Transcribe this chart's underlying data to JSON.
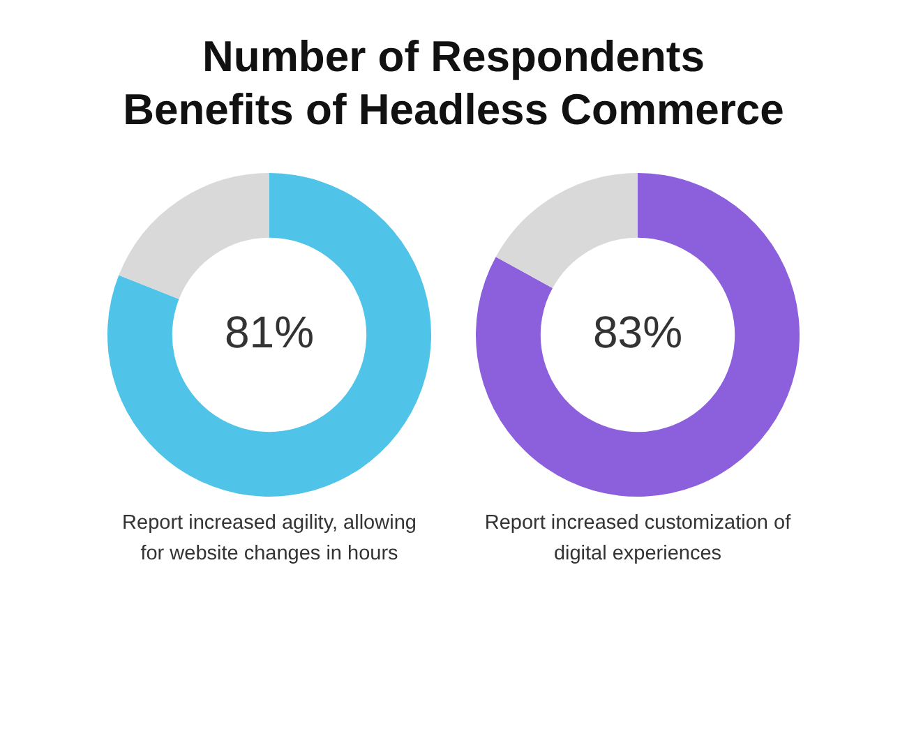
{
  "chart_data": [
    {
      "type": "donut",
      "title": "Number of Respondents\nBenefits of Headless Commerce",
      "categories": [
        null,
        null
      ],
      "values": [
        81,
        19
      ],
      "colors": [
        "#4fc3e8",
        "#d9d9d9"
      ],
      "value_labels": [
        "81%",
        null
      ],
      "annotations": [
        "Report increased agility, allowing for website changes in hours"
      ]
    },
    {
      "type": "donut",
      "categories": [
        null,
        null
      ],
      "values": [
        83,
        17
      ],
      "colors": [
        "#8c5fdc",
        "#d9d9d9"
      ],
      "value_labels": [
        "83%",
        null
      ],
      "annotations": [
        "Report increased customization of digital experiences"
      ]
    }
  ]
}
